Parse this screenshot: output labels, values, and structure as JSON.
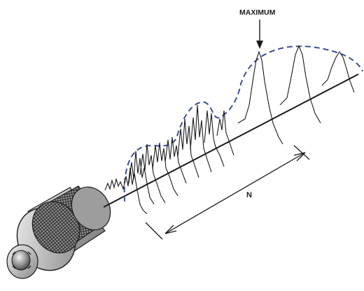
{
  "labels": {
    "maximum": "MAXIMUM",
    "distance": "N"
  },
  "colors": {
    "line": "#1a1a1a",
    "envelope": "#3c4f9a",
    "transducer_body": "#b8b8b8",
    "transducer_shadow": "#6e6e6e",
    "knurl": "#3a3a3a"
  }
}
